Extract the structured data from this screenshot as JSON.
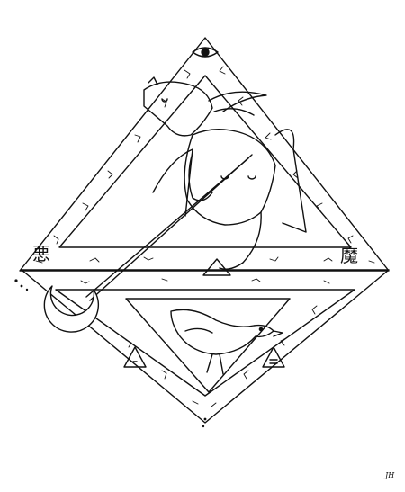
{
  "artwork": {
    "kanji_left": "悪",
    "kanji_right": "魔",
    "signature": "JH",
    "colors": {
      "ink": "#111111",
      "paper": "#ffffff"
    }
  }
}
